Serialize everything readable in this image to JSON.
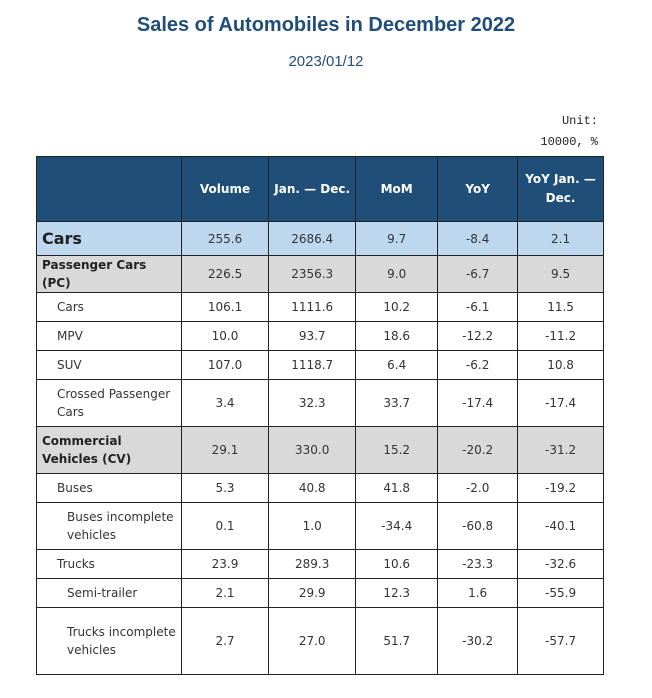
{
  "title": "Sales of Automobiles in December 2022",
  "date": "2023/01/12",
  "unit_line1": "Unit:",
  "unit_line2": "10000, %",
  "colors": {
    "header_bg": "#1f4e79",
    "total_row_bg": "#bdd7ee",
    "group_row_bg": "#d9d9d9",
    "title": "#1f4e79"
  },
  "table": {
    "headers": [
      "",
      "Volume",
      "Jan. — Dec.",
      "MoM",
      "YoY",
      "YoY Jan. — Dec."
    ],
    "rows": [
      {
        "label": "Cars",
        "level": 0,
        "values": [
          "255.6",
          "2686.4",
          "9.7",
          "-8.4",
          "2.1"
        ]
      },
      {
        "label": "Passenger Cars (PC)",
        "level": 1,
        "values": [
          "226.5",
          "2356.3",
          "9.0",
          "-6.7",
          "9.5"
        ]
      },
      {
        "label": "Cars",
        "level": 2,
        "values": [
          "106.1",
          "1111.6",
          "10.2",
          "-6.1",
          "11.5"
        ]
      },
      {
        "label": "MPV",
        "level": 2,
        "values": [
          "10.0",
          "93.7",
          "18.6",
          "-12.2",
          "-11.2"
        ]
      },
      {
        "label": "SUV",
        "level": 2,
        "values": [
          "107.0",
          "1118.7",
          "6.4",
          "-6.2",
          "10.8"
        ]
      },
      {
        "label": "Crossed Passenger Cars",
        "level": 2,
        "values": [
          "3.4",
          "32.3",
          "33.7",
          "-17.4",
          "-17.4"
        ]
      },
      {
        "label": "Commercial Vehicles (CV)",
        "level": 1,
        "values": [
          "29.1",
          "330.0",
          "15.2",
          "-20.2",
          "-31.2"
        ]
      },
      {
        "label": "Buses",
        "level": 2,
        "values": [
          "5.3",
          "40.8",
          "41.8",
          "-2.0",
          "-19.2"
        ]
      },
      {
        "label": "Buses incomplete vehicles",
        "level": 3,
        "values": [
          "0.1",
          "1.0",
          "-34.4",
          "-60.8",
          "-40.1"
        ]
      },
      {
        "label": "Trucks",
        "level": 2,
        "values": [
          "23.9",
          "289.3",
          "10.6",
          "-23.3",
          "-32.6"
        ]
      },
      {
        "label": "Semi-trailer",
        "level": 3,
        "values": [
          "2.1",
          "29.9",
          "12.3",
          "1.6",
          "-55.9"
        ]
      },
      {
        "label": "Trucks incomplete vehicles",
        "level": 3,
        "values": [
          "2.7",
          "27.0",
          "51.7",
          "-30.2",
          "-57.7"
        ]
      }
    ]
  }
}
